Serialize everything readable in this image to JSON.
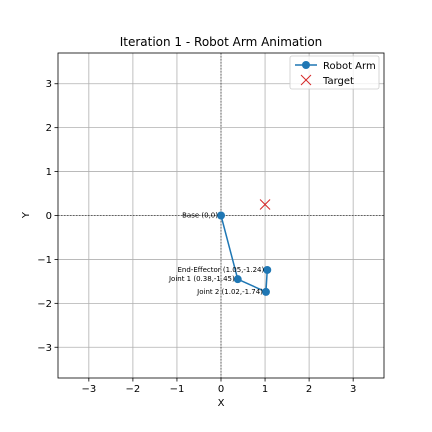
{
  "chart_data": {
    "type": "line",
    "title": "Iteration 1 - Robot Arm Animation",
    "xlabel": "X",
    "ylabel": "Y",
    "xlim": [
      -3.7,
      3.7
    ],
    "ylim": [
      -3.7,
      3.7
    ],
    "xticks": [
      -3,
      -2,
      -1,
      0,
      1,
      2,
      3
    ],
    "yticks": [
      -3,
      -2,
      -1,
      0,
      1,
      2,
      3
    ],
    "tick_labels": [
      "−3",
      "−2",
      "−1",
      "0",
      "1",
      "2",
      "3"
    ],
    "grid": true,
    "legend_position": "top-right",
    "series": [
      {
        "name": "Robot Arm",
        "color": "#1f77b4",
        "marker": "circle",
        "points": [
          {
            "x": 0.0,
            "y": 0.0
          },
          {
            "x": 0.38,
            "y": -1.45
          },
          {
            "x": 1.02,
            "y": -1.74
          },
          {
            "x": 1.05,
            "y": -1.24
          }
        ]
      },
      {
        "name": "Target",
        "color": "#d62728",
        "marker": "x",
        "points": [
          {
            "x": 1.0,
            "y": 0.25
          }
        ]
      }
    ],
    "annotations": [
      {
        "text": "Base (0,0)",
        "x": 0.0,
        "y": 0.0
      },
      {
        "text": "Joint 1 (0.38,-1.45)",
        "x": 0.38,
        "y": -1.45
      },
      {
        "text": "Joint 2 (1.02,-1.74)",
        "x": 1.02,
        "y": -1.74
      },
      {
        "text": "End-Effector (1.05,-1.24)",
        "x": 1.05,
        "y": -1.24
      }
    ]
  }
}
